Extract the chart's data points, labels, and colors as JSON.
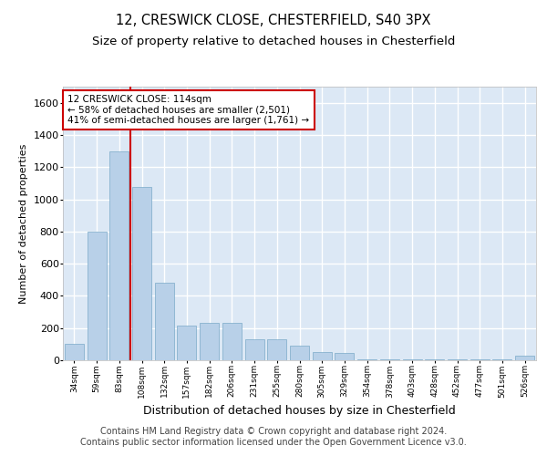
{
  "title_line1": "12, CRESWICK CLOSE, CHESTERFIELD, S40 3PX",
  "title_line2": "Size of property relative to detached houses in Chesterfield",
  "xlabel": "Distribution of detached houses by size in Chesterfield",
  "ylabel": "Number of detached properties",
  "categories": [
    "34sqm",
    "59sqm",
    "83sqm",
    "108sqm",
    "132sqm",
    "157sqm",
    "182sqm",
    "206sqm",
    "231sqm",
    "255sqm",
    "280sqm",
    "305sqm",
    "329sqm",
    "354sqm",
    "378sqm",
    "403sqm",
    "428sqm",
    "452sqm",
    "477sqm",
    "501sqm",
    "526sqm"
  ],
  "values": [
    100,
    800,
    1300,
    1075,
    480,
    215,
    230,
    230,
    130,
    130,
    90,
    50,
    45,
    5,
    5,
    5,
    5,
    5,
    5,
    5,
    30
  ],
  "bar_color": "#b8d0e8",
  "bar_edge_color": "#7aaac8",
  "background_color": "#dce8f5",
  "grid_color": "#ffffff",
  "annotation_line1": "12 CRESWICK CLOSE: 114sqm",
  "annotation_line2": "← 58% of detached houses are smaller (2,501)",
  "annotation_line3": "41% of semi-detached houses are larger (1,761) →",
  "annotation_box_color": "#ffffff",
  "annotation_box_edge_color": "#cc0000",
  "vline_color": "#cc0000",
  "vline_x_index": 2.5,
  "ylim": [
    0,
    1700
  ],
  "yticks": [
    0,
    200,
    400,
    600,
    800,
    1000,
    1200,
    1400,
    1600
  ],
  "footer_line1": "Contains HM Land Registry data © Crown copyright and database right 2024.",
  "footer_line2": "Contains public sector information licensed under the Open Government Licence v3.0.",
  "title_fontsize": 10.5,
  "subtitle_fontsize": 9.5,
  "ylabel_fontsize": 8,
  "xlabel_fontsize": 9,
  "xtick_fontsize": 6.5,
  "ytick_fontsize": 8,
  "footer_fontsize": 7,
  "annotation_fontsize": 7.5
}
